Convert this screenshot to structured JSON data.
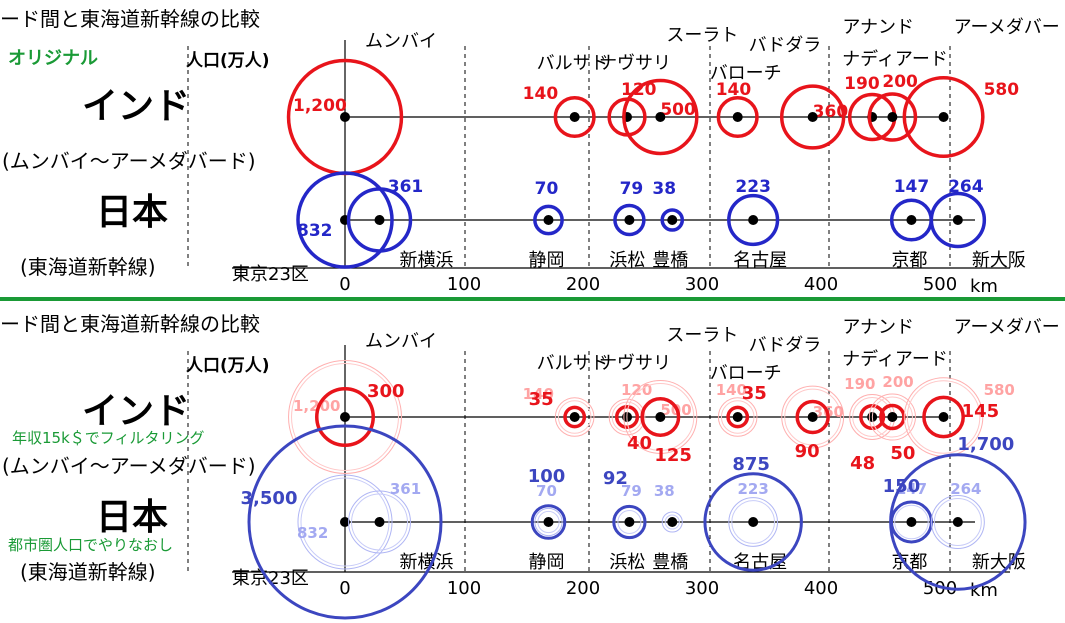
{
  "chart_data": [
    {
      "type": "scatter",
      "title": "ード間と東海道新幹線の比較",
      "tag": "オリジナル",
      "size_label": "人口(万人)",
      "x_ticks": [
        "0",
        "100",
        "200",
        "300",
        "400",
        "500"
      ],
      "x_unit": "km",
      "xlim": [
        0,
        500
      ],
      "origin_label": "東京23区",
      "india": {
        "name": "インド",
        "sub": "(ムンバイ～アーメダバード)",
        "color": "#e8141b",
        "points": [
          {
            "name": "ムンバイ",
            "km": 0,
            "pop": 1200,
            "label": "1,200"
          },
          {
            "name": "バルサド",
            "km": 193,
            "pop": 140,
            "label": "140"
          },
          {
            "name": "ナヴサリ",
            "km": 237,
            "pop": 120,
            "label": "120"
          },
          {
            "name": "スーラト",
            "km": 265,
            "pop": 500,
            "label": "500"
          },
          {
            "name": "バローチ",
            "km": 330,
            "pop": 140,
            "label": "140"
          },
          {
            "name": "バドダラ",
            "km": 393,
            "pop": 360,
            "label": "360"
          },
          {
            "name": "ナディアード",
            "km": 443,
            "pop": 190,
            "label": "190"
          },
          {
            "name": "アナンド",
            "km": 460,
            "pop": 200,
            "label": "200"
          },
          {
            "name": "アーメダバード",
            "km": 503,
            "pop": 580,
            "label": "580"
          }
        ]
      },
      "japan": {
        "name": "日本",
        "sub": "(東海道新幹線)",
        "color": "#2427c8",
        "points": [
          {
            "name": "東京23区",
            "km": 0,
            "pop": 832,
            "label": "832"
          },
          {
            "name": "新横浜",
            "km": 29,
            "pop": 361,
            "label": "361"
          },
          {
            "name": "静岡",
            "km": 171,
            "pop": 70,
            "label": "70"
          },
          {
            "name": "浜松",
            "km": 239,
            "pop": 79,
            "label": "79"
          },
          {
            "name": "豊橋",
            "km": 275,
            "pop": 38,
            "label": "38"
          },
          {
            "name": "名古屋",
            "km": 343,
            "pop": 223,
            "label": "223"
          },
          {
            "name": "京都",
            "km": 476,
            "pop": 147,
            "label": "147"
          },
          {
            "name": "新大阪",
            "km": 515,
            "pop": 264,
            "label": "264"
          }
        ]
      }
    },
    {
      "type": "scatter",
      "title": "ード間と東海道新幹線の比較",
      "size_label": "人口(万人)",
      "x_ticks": [
        "0",
        "100",
        "200",
        "300",
        "400",
        "500"
      ],
      "x_unit": "km",
      "xlim": [
        0,
        500
      ],
      "origin_label": "東京23区",
      "india": {
        "name": "インド",
        "sub": "(ムンバイ～アーメダバード)",
        "note": "年収15k＄でフィルタリング",
        "color": "#e8141b",
        "points": [
          {
            "name": "ムンバイ",
            "km": 0,
            "pop_orig": 1200,
            "label_orig": "1,200",
            "pop": 300,
            "label": "300"
          },
          {
            "name": "バルサド",
            "km": 193,
            "pop_orig": 140,
            "label_orig": "140",
            "pop": 35,
            "label": "35"
          },
          {
            "name": "ナヴサリ",
            "km": 237,
            "pop_orig": 120,
            "label_orig": "120",
            "pop": 40,
            "label": "40"
          },
          {
            "name": "スーラト",
            "km": 265,
            "pop_orig": 500,
            "label_orig": "500",
            "pop": 125,
            "label": "125"
          },
          {
            "name": "バローチ",
            "km": 330,
            "pop_orig": 140,
            "label_orig": "140",
            "pop": 35,
            "label": "35"
          },
          {
            "name": "バドダラ",
            "km": 393,
            "pop_orig": 360,
            "label_orig": "360",
            "pop": 90,
            "label": "90"
          },
          {
            "name": "ナディアード",
            "km": 443,
            "pop_orig": 190,
            "label_orig": "190",
            "pop": 48,
            "label": "48"
          },
          {
            "name": "アナンド",
            "km": 460,
            "pop_orig": 200,
            "label_orig": "200",
            "pop": 50,
            "label": "50"
          },
          {
            "name": "アーメダバード",
            "km": 503,
            "pop_orig": 580,
            "label_orig": "580",
            "pop": 145,
            "label": "145"
          }
        ]
      },
      "japan": {
        "name": "日本",
        "sub": "(東海道新幹線)",
        "note": "都市圏人口でやりなおし",
        "color": "#3c46c0",
        "points": [
          {
            "name": "東京23区",
            "km": 0,
            "pop_orig": 832,
            "label_orig": "832",
            "pop": 3500,
            "label": "3,500"
          },
          {
            "name": "新横浜",
            "km": 29,
            "pop_orig": 361,
            "label_orig": "361",
            "pop": null,
            "label": ""
          },
          {
            "name": "静岡",
            "km": 171,
            "pop_orig": 70,
            "label_orig": "70",
            "pop": 100,
            "label": "100"
          },
          {
            "name": "浜松",
            "km": 239,
            "pop_orig": 79,
            "label_orig": "79",
            "pop": 92,
            "label": "92"
          },
          {
            "name": "豊橋",
            "km": 275,
            "pop_orig": 38,
            "label_orig": "38",
            "pop": null,
            "label": ""
          },
          {
            "name": "名古屋",
            "km": 343,
            "pop_orig": 223,
            "label_orig": "223",
            "pop": 875,
            "label": "875"
          },
          {
            "name": "京都",
            "km": 476,
            "pop_orig": 147,
            "label_orig": "147",
            "pop": 150,
            "label": "150"
          },
          {
            "name": "新大阪",
            "km": 515,
            "pop_orig": 264,
            "label_orig": "264",
            "pop": 1700,
            "label": "1,700"
          }
        ]
      }
    }
  ]
}
